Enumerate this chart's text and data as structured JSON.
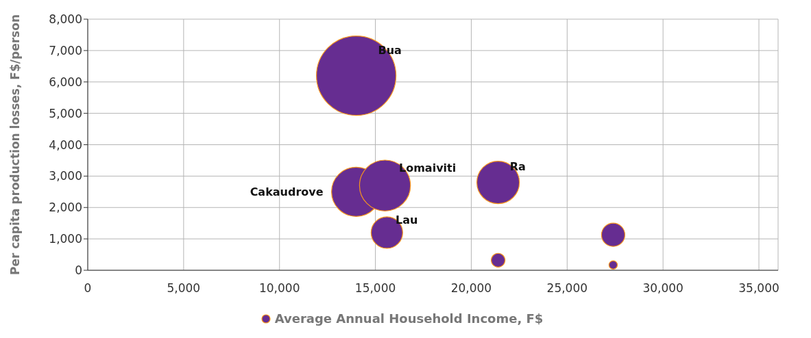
{
  "chart_data": {
    "type": "bubble",
    "ylabel": "Per capita production losses, F$/person",
    "x": [
      14000,
      14000,
      15500,
      15600,
      21400,
      21400,
      27400,
      27400
    ],
    "series": [
      {
        "name": "Average Annual Household Income, F$",
        "color": "#662d91",
        "values": [
          6200,
          2500,
          2700,
          1200,
          2800,
          320,
          1130,
          170
        ],
        "sizes": [
          1,
          0.385,
          0.41,
          0.157,
          0.286,
          0.03,
          0.086,
          0.011
        ]
      }
    ],
    "xlim": [
      0,
      36000
    ],
    "xticks": [
      {
        "value": 0,
        "label": "0"
      },
      {
        "value": 5000,
        "label": "5,000"
      },
      {
        "value": 10000,
        "label": "10,000"
      },
      {
        "value": 15000,
        "label": "15,000"
      },
      {
        "value": 20000,
        "label": "20,000"
      },
      {
        "value": 25000,
        "label": "25,000"
      },
      {
        "value": 30000,
        "label": "30,000"
      },
      {
        "value": 35000,
        "label": "35,000"
      }
    ],
    "ylim": [
      0,
      8000
    ],
    "yticks": [
      {
        "value": 0,
        "label": "0"
      },
      {
        "value": 1000,
        "label": "1,000"
      },
      {
        "value": 2000,
        "label": "2,000"
      },
      {
        "value": 3000,
        "label": "3,000"
      },
      {
        "value": 4000,
        "label": "4,000"
      },
      {
        "value": 5000,
        "label": "5,000"
      },
      {
        "value": 6000,
        "label": "6,000"
      },
      {
        "value": 7000,
        "label": "7,000"
      },
      {
        "value": 8000,
        "label": "8,000"
      }
    ],
    "grid": true,
    "legend": "bottom",
    "marker": "circle",
    "annotations": [
      {
        "text": "Bua",
        "x": 14000,
        "y": 6200
      },
      {
        "text": "Cakaudrove",
        "x": 14000,
        "y": 2500
      },
      {
        "text": "Lomaiviti",
        "x": 15500,
        "y": 2700
      },
      {
        "text": "Lau",
        "x": 15600,
        "y": 1200
      },
      {
        "text": "Ra",
        "x": 21400,
        "y": 2800
      }
    ]
  }
}
